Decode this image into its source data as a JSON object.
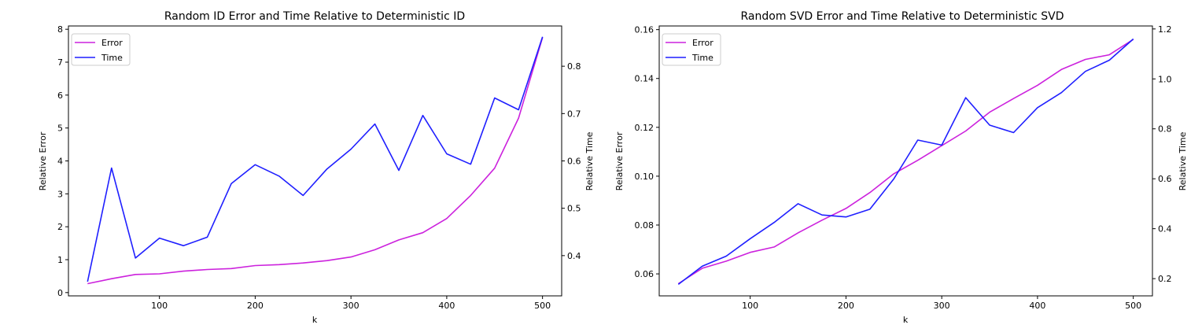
{
  "colors": {
    "error": "#cc22dd",
    "time": "#1f1fff"
  },
  "chart_data": [
    {
      "type": "line",
      "title": "Random ID Error and Time Relative to Deterministic ID",
      "xlabel": "k",
      "ylabel": "Relative Error",
      "y2label": "Relative Time",
      "xlim": [
        5,
        520
      ],
      "ylim": [
        -0.1,
        8.1
      ],
      "y2lim": [
        0.315,
        0.885
      ],
      "xticks": [
        100,
        200,
        300,
        400,
        500
      ],
      "yticks": [
        0,
        1,
        2,
        3,
        4,
        5,
        6,
        7,
        8
      ],
      "y2ticks": [
        0.4,
        0.5,
        0.6,
        0.7,
        0.8
      ],
      "legend": {
        "position": "top-left",
        "entries": [
          "Error",
          "Time"
        ]
      },
      "grid": false,
      "x": [
        25,
        50,
        75,
        100,
        125,
        150,
        175,
        200,
        225,
        250,
        275,
        300,
        325,
        350,
        375,
        400,
        425,
        450,
        475,
        500
      ],
      "series": [
        {
          "name": "Error",
          "axis": "left",
          "color": "#cc22dd",
          "values": [
            0.27,
            0.42,
            0.55,
            0.57,
            0.65,
            0.7,
            0.73,
            0.82,
            0.85,
            0.9,
            0.97,
            1.08,
            1.3,
            1.6,
            1.82,
            2.25,
            2.95,
            3.78,
            5.3,
            7.75
          ]
        },
        {
          "name": "Time",
          "axis": "right",
          "color": "#1f1fff",
          "values": [
            0.345,
            0.585,
            0.395,
            0.437,
            0.421,
            0.439,
            0.552,
            0.592,
            0.568,
            0.527,
            0.583,
            0.625,
            0.678,
            0.58,
            0.696,
            0.615,
            0.593,
            0.733,
            0.708,
            0.862
          ]
        }
      ]
    },
    {
      "type": "line",
      "title": "Random SVD Error and Time Relative to Deterministic SVD",
      "xlabel": "k",
      "ylabel": "Relative Error",
      "y2label": "Relative Time",
      "xlim": [
        5,
        520
      ],
      "ylim": [
        0.051,
        0.1615
      ],
      "y2lim": [
        0.131,
        1.212
      ],
      "xticks": [
        100,
        200,
        300,
        400,
        500
      ],
      "yticks": [
        0.06,
        0.08,
        0.1,
        0.12,
        0.14,
        0.16
      ],
      "y2ticks": [
        0.2,
        0.4,
        0.6,
        0.8,
        1.0,
        1.2
      ],
      "ytickdecimals": 2,
      "y2tickdecimals": 1,
      "legend": {
        "position": "top-left",
        "entries": [
          "Error",
          "Time"
        ]
      },
      "grid": false,
      "x": [
        25,
        50,
        75,
        100,
        125,
        150,
        175,
        200,
        225,
        250,
        275,
        300,
        325,
        350,
        375,
        400,
        425,
        450,
        475,
        500
      ],
      "series": [
        {
          "name": "Error",
          "axis": "left",
          "color": "#cc22dd",
          "values": [
            0.056,
            0.0623,
            0.0652,
            0.0688,
            0.071,
            0.0768,
            0.082,
            0.0868,
            0.0933,
            0.101,
            0.1065,
            0.1125,
            0.1185,
            0.1262,
            0.1318,
            0.1372,
            0.1437,
            0.1478,
            0.1497,
            0.156
          ]
        },
        {
          "name": "Time",
          "axis": "right",
          "color": "#1f1fff",
          "values": [
            0.177,
            0.25,
            0.29,
            0.36,
            0.425,
            0.5,
            0.455,
            0.447,
            0.478,
            0.6,
            0.755,
            0.735,
            0.925,
            0.815,
            0.785,
            0.885,
            0.945,
            1.03,
            1.075,
            1.16
          ]
        }
      ]
    }
  ]
}
